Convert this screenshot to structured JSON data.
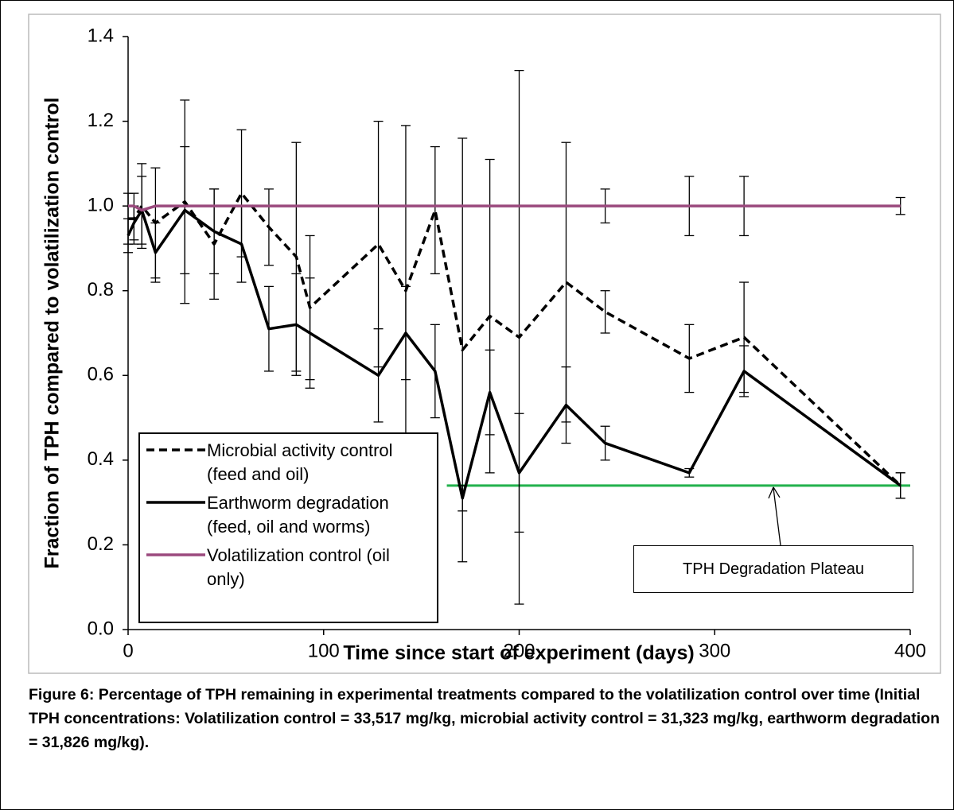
{
  "chart_data": {
    "type": "line",
    "x_label": "Time since start of experiment (days)",
    "y_label": "Fraction of TPH compared to volatilization control",
    "x": [
      0,
      3,
      7,
      14,
      29,
      44,
      58,
      72,
      86,
      93,
      128,
      142,
      157,
      171,
      185,
      200,
      224,
      244,
      287,
      315,
      395
    ],
    "series": [
      {
        "name": "Microbial activity control (feed and oil)",
        "color": "#000000",
        "line_style": "dashed",
        "values": [
          0.97,
          0.97,
          1.0,
          0.96,
          1.01,
          0.91,
          1.03,
          0.95,
          0.88,
          0.76,
          0.91,
          0.8,
          0.99,
          0.66,
          0.74,
          0.69,
          0.82,
          0.75,
          0.64,
          0.69,
          0.34
        ],
        "errors": [
          0.06,
          0.06,
          0.1,
          0.13,
          0.24,
          0.13,
          0.15,
          0.09,
          0.27,
          0.17,
          0.29,
          0.39,
          0.15,
          0.5,
          0.37,
          0.63,
          0.33,
          0.05,
          0.08,
          0.13,
          0.03
        ]
      },
      {
        "name": "Earthworm degradation (feed, oil and worms)",
        "color": "#000000",
        "line_style": "solid",
        "values": [
          0.93,
          0.96,
          0.99,
          0.89,
          0.99,
          0.94,
          0.91,
          0.71,
          0.72,
          0.7,
          0.6,
          0.7,
          0.61,
          0.31,
          0.56,
          0.37,
          0.53,
          0.44,
          0.37,
          0.61,
          0.34
        ],
        "errors": [
          0.04,
          0.04,
          0.08,
          0.07,
          0.15,
          0.1,
          0.09,
          0.1,
          0.12,
          0.13,
          0.11,
          0.11,
          0.11,
          0.03,
          0.1,
          0.14,
          0.09,
          0.04,
          0.01,
          0.06,
          0.03
        ]
      },
      {
        "name": "Volatilization control (oil only)",
        "color": "#9b4a7e",
        "line_style": "solid",
        "values": [
          1.0,
          1.0,
          0.99,
          1.0,
          1.0,
          1.0,
          1.0,
          1.0,
          1.0,
          1.0,
          1.0,
          1.0,
          1.0,
          1.0,
          1.0,
          1.0,
          1.0,
          1.0,
          1.0,
          1.0,
          1.0
        ],
        "errors": [
          null,
          null,
          null,
          null,
          null,
          null,
          null,
          null,
          null,
          null,
          null,
          null,
          null,
          null,
          null,
          null,
          null,
          0.04,
          0.07,
          0.07,
          0.02
        ]
      }
    ],
    "plateau": {
      "label": "TPH Degradation Plateau",
      "value": 0.34,
      "x_range": [
        163,
        400
      ],
      "arrow_x": 330,
      "color": "#22b14c"
    },
    "xlim": [
      0,
      400
    ],
    "xticks": [
      0,
      100,
      200,
      300,
      400
    ],
    "ylim": [
      0,
      1.4
    ],
    "yticks": [
      {
        "value": 0,
        "label": "0.0"
      },
      {
        "value": 0.2,
        "label": "0.2"
      },
      {
        "value": 0.4,
        "label": "0.4"
      },
      {
        "value": 0.6,
        "label": "0.6"
      },
      {
        "value": 0.8,
        "label": "0.8"
      },
      {
        "value": 1.0,
        "label": "1.0"
      },
      {
        "value": 1.2,
        "label": "1.2"
      },
      {
        "value": 1.4,
        "label": "1.4"
      }
    ],
    "grid": false,
    "caption": "Figure 6: Percentage of TPH remaining in experimental treatments compared to the volatilization control over time (Initial TPH concentrations: Volatilization control = 33,517 mg/kg, microbial activity control = 31,323 mg/kg, earthworm degradation = 31,826 mg/kg)."
  }
}
